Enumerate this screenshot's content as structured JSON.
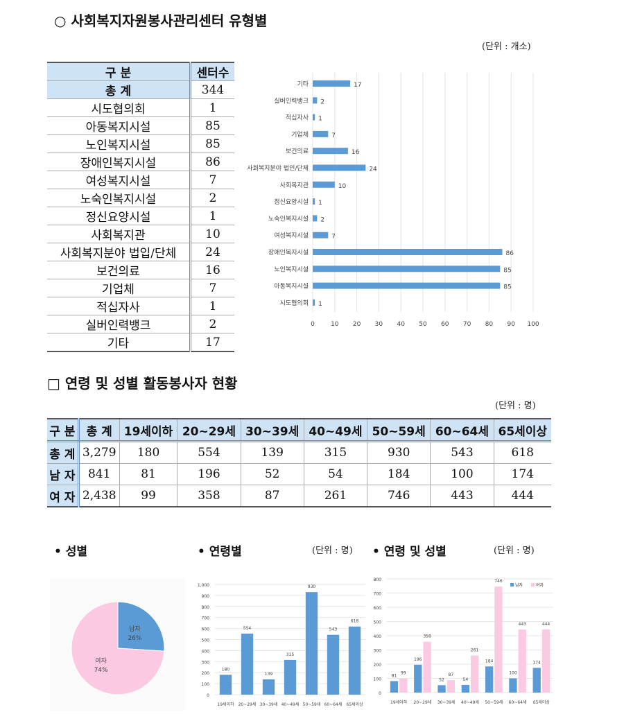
{
  "section1": {
    "title": "○ 사회복지자원봉사관리센터 유형별",
    "unit": "(단위 : 개소)",
    "table": {
      "headers": [
        "구    분",
        "센터수"
      ],
      "rows": [
        [
          "총    계",
          "344"
        ],
        [
          "시도협의회",
          "1"
        ],
        [
          "아동복지시설",
          "85"
        ],
        [
          "노인복지시설",
          "85"
        ],
        [
          "장애인복지시설",
          "86"
        ],
        [
          "여성복지시설",
          "7"
        ],
        [
          "노숙인복지시설",
          "2"
        ],
        [
          "정신요양시설",
          "1"
        ],
        [
          "사회복지관",
          "10"
        ],
        [
          "사회복지분야 법입/단체",
          "24"
        ],
        [
          "보건의료",
          "16"
        ],
        [
          "기업체",
          "7"
        ],
        [
          "적십자사",
          "1"
        ],
        [
          "실버인력뱅크",
          "2"
        ],
        [
          "기타",
          "17"
        ]
      ]
    }
  },
  "section2": {
    "title": "□ 연령 및 성별 활동봉사자 현황",
    "unit": "(단위 : 명)",
    "table": {
      "headers": [
        "구 분",
        "총 계",
        "19세이하",
        "20~29세",
        "30~39세",
        "40~49세",
        "50~59세",
        "60~64세",
        "65세이상"
      ],
      "rows": [
        [
          "총 계",
          "3,279",
          "180",
          "554",
          "139",
          "315",
          "930",
          "543",
          "618"
        ],
        [
          "남 자",
          "841",
          "81",
          "196",
          "52",
          "54",
          "184",
          "100",
          "174"
        ],
        [
          "여 자",
          "2,438",
          "99",
          "358",
          "87",
          "261",
          "746",
          "443",
          "444"
        ]
      ]
    }
  },
  "subtitles": {
    "gender": "• 성별",
    "age": "• 연령별",
    "age_unit": "(단위 : 명)",
    "age_gender": "• 연령 및 성별",
    "age_gender_unit": "(단위 : 명)"
  },
  "colors": {
    "blue": "#5b9bd5",
    "pink": "#fbc9e1",
    "header": "#cfe3f6"
  },
  "chart_data": [
    {
      "type": "bar",
      "orientation": "horizontal",
      "categories": [
        "기타",
        "실버인력뱅크",
        "적십자사",
        "기업체",
        "보건의료",
        "사회복지분야 법인/단체",
        "사회복지관",
        "정신요양시설",
        "노숙인복지시설",
        "여성복지시설",
        "장애인복지시설",
        "노인복지시설",
        "아동복지시설",
        "시도협의회"
      ],
      "values": [
        17,
        2,
        1,
        7,
        16,
        24,
        10,
        1,
        2,
        7,
        86,
        85,
        85,
        1
      ],
      "xlim": [
        0,
        100
      ],
      "xticks": [
        0,
        10,
        20,
        30,
        40,
        50,
        60,
        70,
        80,
        90,
        100
      ],
      "grid": true
    },
    {
      "type": "pie",
      "categories": [
        "남자",
        "여자"
      ],
      "values": [
        26,
        74
      ],
      "labels": [
        "26%",
        "74%"
      ]
    },
    {
      "type": "bar",
      "categories": [
        "19세이하",
        "20~29세",
        "30~39세",
        "40~49세",
        "50~59세",
        "60~64세",
        "65세이상"
      ],
      "values": [
        180,
        554,
        139,
        315,
        930,
        543,
        618
      ],
      "ylim": [
        0,
        1000
      ],
      "yticks": [
        "0",
        "100",
        "200",
        "300",
        "400",
        "500",
        "600",
        "700",
        "800",
        "900",
        "1,000"
      ],
      "grid": true
    },
    {
      "type": "bar",
      "categories": [
        "19세이하",
        "20~29세",
        "30~39세",
        "40~49세",
        "50~59세",
        "60~64세",
        "65세이상"
      ],
      "series": [
        {
          "name": "남자",
          "values": [
            81,
            196,
            52,
            54,
            184,
            100,
            174
          ]
        },
        {
          "name": "여자",
          "values": [
            99,
            358,
            87,
            261,
            746,
            443,
            444
          ]
        }
      ],
      "ylim": [
        0,
        800
      ],
      "yticks": [
        "0",
        "100",
        "200",
        "300",
        "400",
        "500",
        "600",
        "700",
        "800"
      ],
      "legend": "top-right",
      "grid": true
    }
  ]
}
